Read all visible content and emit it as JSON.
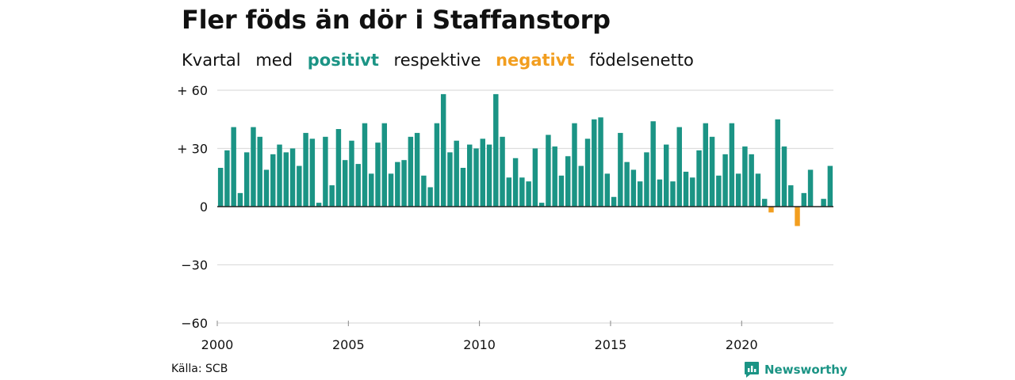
{
  "header": {
    "title": "Fler föds än dör i Staffanstorp",
    "subtitle": {
      "part1": "Kvartal",
      "part2": "med",
      "positive_word": "positivt",
      "part3": "respektive",
      "negative_word": "negativt",
      "part4": "födelsenetto"
    }
  },
  "footer": {
    "source": "Källa: SCB",
    "brand": "Newsworthy"
  },
  "colors": {
    "positive": "#1b9485",
    "negative": "#f29e1f",
    "grid": "#dddddd",
    "axis": "#222222"
  },
  "chart_data": {
    "type": "bar",
    "x_start_year": 2000,
    "periods_per_year": 4,
    "x_ticks": [
      2000,
      2005,
      2010,
      2015,
      2020
    ],
    "x_tick_labels": [
      "2000",
      "2005",
      "2010",
      "2015",
      "2020"
    ],
    "y_ticks": [
      60,
      30,
      0,
      -30,
      -60
    ],
    "y_tick_labels": [
      "+ 60",
      "+ 30",
      "0",
      "−30",
      "−60"
    ],
    "ylim": [
      -60,
      60
    ],
    "grid": true,
    "values": [
      20,
      29,
      41,
      7,
      28,
      41,
      36,
      19,
      27,
      32,
      28,
      30,
      21,
      38,
      35,
      2,
      36,
      11,
      40,
      24,
      34,
      22,
      43,
      17,
      33,
      43,
      17,
      23,
      24,
      36,
      38,
      16,
      10,
      43,
      58,
      28,
      34,
      20,
      32,
      30,
      35,
      32,
      58,
      36,
      15,
      25,
      15,
      13,
      30,
      2,
      37,
      31,
      16,
      26,
      43,
      21,
      35,
      45,
      46,
      17,
      5,
      38,
      23,
      19,
      13,
      28,
      44,
      14,
      32,
      13,
      41,
      18,
      15,
      29,
      43,
      36,
      16,
      27,
      43,
      17,
      31,
      27,
      17,
      4,
      -3,
      45,
      31,
      11,
      -10,
      7,
      19,
      0,
      4,
      21
    ]
  }
}
